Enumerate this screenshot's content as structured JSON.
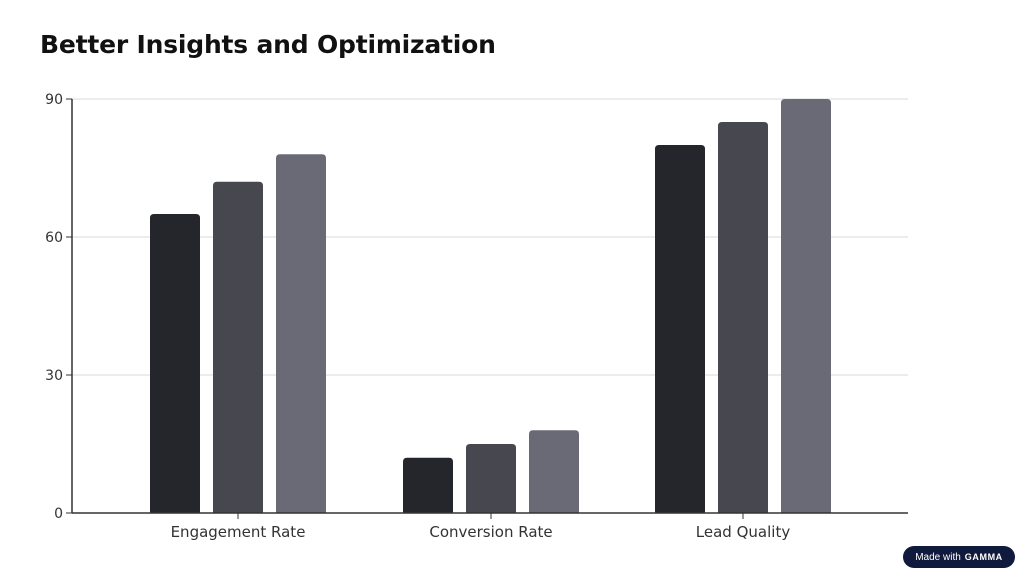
{
  "slide": {
    "title": "Better Insights and Optimization"
  },
  "badge": {
    "prefix": "Made with",
    "brand": "GAMMA"
  },
  "colors": {
    "series": [
      "#25262b",
      "#46474f",
      "#696a76"
    ],
    "grid": "#d9d9d9",
    "axis": "#333333"
  },
  "chart_data": {
    "type": "bar",
    "title": "",
    "xlabel": "",
    "ylabel": "",
    "categories": [
      "Engagement Rate",
      "Conversion Rate",
      "Lead Quality"
    ],
    "series": [
      {
        "values": [
          65,
          12,
          80
        ]
      },
      {
        "values": [
          72,
          15,
          85
        ]
      },
      {
        "values": [
          78,
          18,
          90
        ]
      }
    ],
    "ylim": [
      0,
      90
    ],
    "yticks": [
      0,
      30,
      60,
      90
    ],
    "grid": true,
    "legend": "none"
  }
}
